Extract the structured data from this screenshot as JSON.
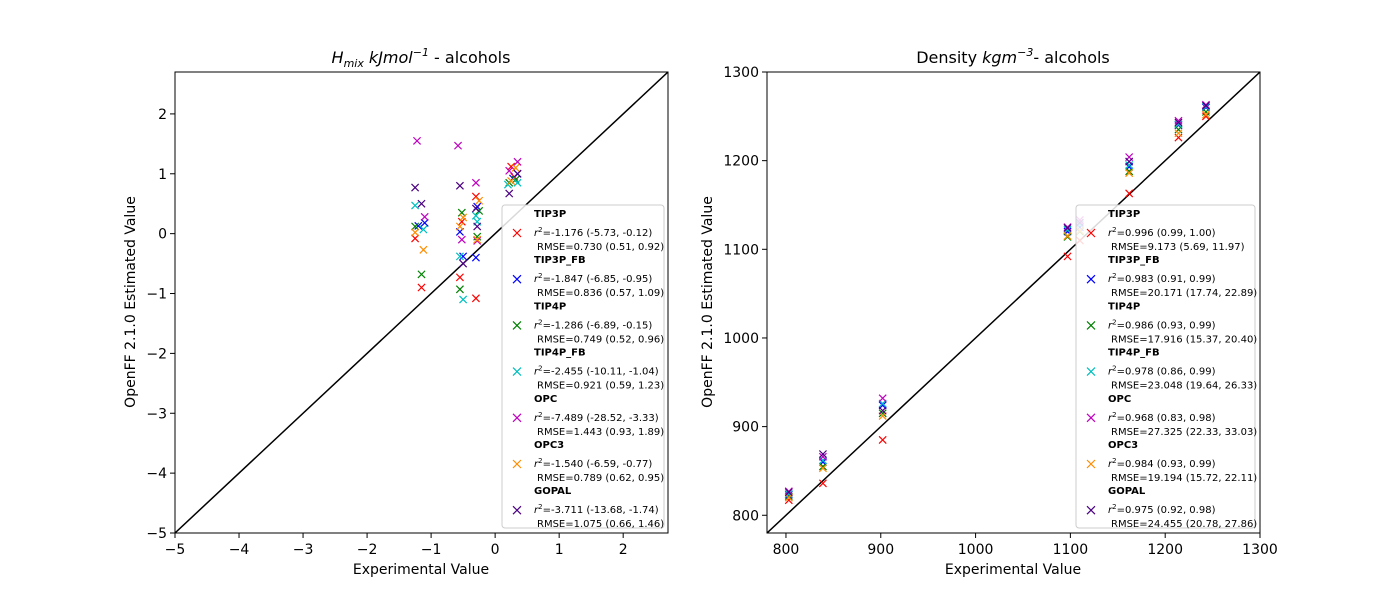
{
  "chart_data": [
    {
      "type": "scatter",
      "title_main": "H",
      "title_sub": "mix",
      "title_unit": " kJmol",
      "title_sup": "−1",
      "title_suffix": " - alcohols",
      "xlabel": "Experimental Value",
      "ylabel": "OpenFF 2.1.0 Estimated Value",
      "xlim": [
        -5,
        2.7
      ],
      "ylim": [
        -5,
        2.7
      ],
      "xticks": [
        -5,
        -4,
        -3,
        -2,
        -1,
        0,
        1,
        2
      ],
      "yticks": [
        -5,
        -4,
        -3,
        -2,
        -1,
        0,
        1,
        2
      ],
      "xtick_labels": [
        "−5",
        "−4",
        "−3",
        "−2",
        "−1",
        "0",
        "1",
        "2"
      ],
      "ytick_labels": [
        "−5",
        "−4",
        "−3",
        "−2",
        "−1",
        "0",
        "1",
        "2"
      ],
      "legend_position": "lower-right",
      "identity_line": true,
      "series": [
        {
          "name": "TIP3P",
          "color": "#ff0000",
          "stat_r2": "=-1.176 (-5.73, -0.12)",
          "stat_rmse": "RMSE=0.730 (0.51, 0.92)",
          "points": [
            [
              -1.25,
              -0.08
            ],
            [
              -1.15,
              -0.9
            ],
            [
              -0.55,
              -0.73
            ],
            [
              -0.52,
              0.2
            ],
            [
              -0.3,
              -1.08
            ],
            [
              -0.3,
              0.62
            ],
            [
              0.25,
              1.12
            ],
            [
              0.3,
              0.95
            ]
          ]
        },
        {
          "name": "TIP3P_FB",
          "color": "#0000ff",
          "stat_r2": "=-1.847 (-6.85, -0.95)",
          "stat_rmse": "RMSE=0.836 (0.57, 1.09)",
          "points": [
            [
              -1.2,
              0.13
            ],
            [
              -1.1,
              0.18
            ],
            [
              -0.55,
              0.03
            ],
            [
              -0.5,
              -0.38
            ],
            [
              -0.3,
              -0.4
            ],
            [
              -0.28,
              0.45
            ],
            [
              0.28,
              0.92
            ],
            [
              0.35,
              1.0
            ]
          ]
        },
        {
          "name": "TIP4P",
          "color": "#008000",
          "stat_r2": "=-1.286 (-6.89, -0.15)",
          "stat_rmse": "RMSE=0.749 (0.52, 0.96)",
          "points": [
            [
              -1.25,
              0.12
            ],
            [
              -1.15,
              -0.68
            ],
            [
              -0.55,
              -0.93
            ],
            [
              -0.52,
              0.35
            ],
            [
              -0.28,
              -0.05
            ],
            [
              -0.25,
              0.38
            ],
            [
              0.22,
              0.85
            ],
            [
              0.32,
              0.9
            ]
          ]
        },
        {
          "name": "TIP4P_FB",
          "color": "#00bfbf",
          "stat_r2": "=-2.455 (-10.11, -1.04)",
          "stat_rmse": "RMSE=0.921 (0.59, 1.23)",
          "points": [
            [
              -1.25,
              0.47
            ],
            [
              -1.12,
              0.07
            ],
            [
              -0.55,
              -0.38
            ],
            [
              -0.5,
              -1.1
            ],
            [
              -0.28,
              0.2
            ],
            [
              -0.3,
              0.3
            ],
            [
              0.2,
              0.82
            ],
            [
              0.35,
              0.85
            ]
          ]
        },
        {
          "name": "OPC",
          "color": "#bf00bf",
          "stat_r2": "=-7.489 (-28.52, -3.33)",
          "stat_rmse": "RMSE=1.443 (0.93, 1.89)",
          "points": [
            [
              -1.22,
              1.55
            ],
            [
              -1.1,
              0.28
            ],
            [
              -0.58,
              1.47
            ],
            [
              -0.52,
              -0.1
            ],
            [
              -0.3,
              0.85
            ],
            [
              -0.28,
              -0.12
            ],
            [
              0.22,
              1.05
            ],
            [
              0.35,
              1.2
            ]
          ]
        },
        {
          "name": "OPC3",
          "color": "#ff8c00",
          "stat_r2": "=-1.540 (-6.59, -0.77)",
          "stat_rmse": "RMSE=0.789 (0.62, 0.95)",
          "points": [
            [
              -1.25,
              0.02
            ],
            [
              -1.12,
              -0.27
            ],
            [
              -0.55,
              0.12
            ],
            [
              -0.5,
              0.27
            ],
            [
              -0.28,
              -0.1
            ],
            [
              -0.25,
              0.55
            ],
            [
              0.25,
              0.88
            ],
            [
              0.32,
              1.1
            ]
          ]
        },
        {
          "name": "GOPAL",
          "color": "#4b0082",
          "stat_r2": "=-3.711 (-13.68, -1.74)",
          "stat_rmse": "RMSE=1.075 (0.66, 1.46)",
          "points": [
            [
              -1.25,
              0.77
            ],
            [
              -1.15,
              0.5
            ],
            [
              -0.55,
              0.8
            ],
            [
              -0.5,
              -0.5
            ],
            [
              -0.3,
              0.42
            ],
            [
              -0.28,
              0.12
            ],
            [
              0.22,
              0.67
            ],
            [
              0.35,
              1.0
            ]
          ]
        }
      ]
    },
    {
      "type": "scatter",
      "title_main": "Density",
      "title_unit": " kgm",
      "title_sup": "−3",
      "title_suffix": "- alcohols",
      "xlabel": "Experimental Value",
      "ylabel": "OpenFF 2.1.0 Estimated Value",
      "xlim": [
        780,
        1300
      ],
      "ylim": [
        780,
        1300
      ],
      "xticks": [
        800,
        900,
        1000,
        1100,
        1200,
        1300
      ],
      "yticks": [
        800,
        900,
        1000,
        1100,
        1200,
        1300
      ],
      "xtick_labels": [
        "800",
        "900",
        "1000",
        "1100",
        "1200",
        "1300"
      ],
      "ytick_labels": [
        "800",
        "900",
        "1000",
        "1100",
        "1200",
        "1300"
      ],
      "legend_position": "lower-right",
      "identity_line": true,
      "series": [
        {
          "name": "TIP3P",
          "color": "#ff0000",
          "stat_r2": "=0.996 (0.99, 1.00)",
          "stat_rmse": "RMSE=9.173 (5.69, 11.97)",
          "points": [
            [
              803,
              817
            ],
            [
              839,
              836
            ],
            [
              902,
              885
            ],
            [
              1097,
              1092
            ],
            [
              1110,
              1110
            ],
            [
              1162,
              1163
            ],
            [
              1214,
              1226
            ],
            [
              1243,
              1250
            ]
          ]
        },
        {
          "name": "TIP3P_FB",
          "color": "#0000ff",
          "stat_r2": "=0.983 (0.91, 0.99)",
          "stat_rmse": "RMSE=20.171 (17.74, 22.89)",
          "points": [
            [
              803,
              823
            ],
            [
              839,
              860
            ],
            [
              902,
              924
            ],
            [
              1097,
              1120
            ],
            [
              1110,
              1125
            ],
            [
              1162,
              1193
            ],
            [
              1214,
              1240
            ],
            [
              1243,
              1260
            ]
          ]
        },
        {
          "name": "TIP4P",
          "color": "#008000",
          "stat_r2": "=0.986 (0.93, 0.99)",
          "stat_rmse": "RMSE=17.916 (15.37, 20.40)",
          "points": [
            [
              803,
              821
            ],
            [
              839,
              855
            ],
            [
              902,
              915
            ],
            [
              1097,
              1114
            ],
            [
              1110,
              1120
            ],
            [
              1162,
              1188
            ],
            [
              1214,
              1235
            ],
            [
              1243,
              1255
            ]
          ]
        },
        {
          "name": "TIP4P_FB",
          "color": "#00bfbf",
          "stat_r2": "=0.978 (0.86, 0.99)",
          "stat_rmse": "RMSE=23.048 (19.64, 26.33)",
          "points": [
            [
              803,
              824
            ],
            [
              839,
              862
            ],
            [
              902,
              926
            ],
            [
              1097,
              1122
            ],
            [
              1110,
              1128
            ],
            [
              1162,
              1195
            ],
            [
              1214,
              1241
            ],
            [
              1243,
              1261
            ]
          ]
        },
        {
          "name": "OPC",
          "color": "#bf00bf",
          "stat_r2": "=0.968 (0.83, 0.98)",
          "stat_rmse": "RMSE=27.325 (22.33, 33.03)",
          "points": [
            [
              803,
              827
            ],
            [
              839,
              866
            ],
            [
              902,
              932
            ],
            [
              1097,
              1125
            ],
            [
              1110,
              1133
            ],
            [
              1162,
              1204
            ],
            [
              1214,
              1245
            ],
            [
              1243,
              1263
            ]
          ]
        },
        {
          "name": "OPC3",
          "color": "#ff8c00",
          "stat_r2": "=0.984 (0.93, 0.99)",
          "stat_rmse": "RMSE=19.194 (15.72, 22.11)",
          "points": [
            [
              803,
              820
            ],
            [
              839,
              853
            ],
            [
              902,
              912
            ],
            [
              1097,
              1115
            ],
            [
              1110,
              1121
            ],
            [
              1162,
              1186
            ],
            [
              1214,
              1231
            ],
            [
              1243,
              1252
            ]
          ]
        },
        {
          "name": "GOPAL",
          "color": "#4b0082",
          "stat_r2": "=0.975 (0.92, 0.98)",
          "stat_rmse": "RMSE=24.455 (20.78, 27.86)",
          "points": [
            [
              803,
              826
            ],
            [
              839,
              869
            ],
            [
              902,
              918
            ],
            [
              1097,
              1124
            ],
            [
              1110,
              1130
            ],
            [
              1162,
              1199
            ],
            [
              1214,
              1243
            ],
            [
              1243,
              1262
            ]
          ]
        }
      ]
    }
  ],
  "legend_r2_symbol": "r",
  "legend_r2_sup": "2"
}
